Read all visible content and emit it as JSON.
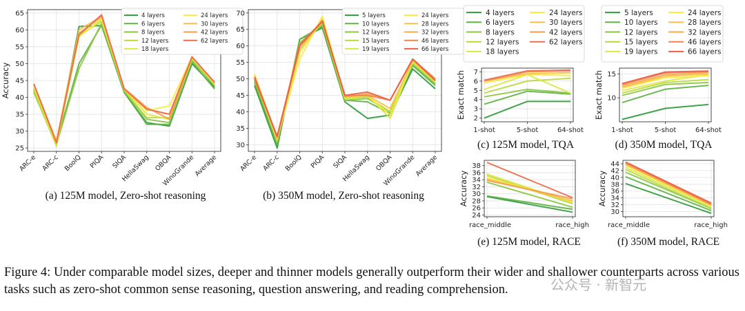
{
  "colors": {
    "g4": "#2e9a3a",
    "g6": "#5db344",
    "g8": "#8cc63f",
    "g12": "#b8d93c",
    "g18": "#dbe844",
    "g24": "#f7ea3f",
    "g30": "#f5c04c",
    "g42": "#f39a4c",
    "g62": "#ec6d4d",
    "s5": "#2e9a3a",
    "s10": "#5db344",
    "s12": "#8cc63f",
    "s15": "#b8d93c",
    "s19": "#dbe844",
    "s24": "#f7ea3f",
    "s28": "#f5c04c",
    "s32": "#f3aa4a",
    "s46": "#f0824a",
    "s66": "#ec5d45"
  },
  "figure_caption": "Figure 4: Under comparable model sizes, deeper and thinner models generally outperform their wider and shallower counterparts across various tasks such as zero-shot common sense reasoning, question answering, and reading comprehension.",
  "watermark": "公众号 · 新智元",
  "chart_data": [
    {
      "id": "a",
      "type": "line",
      "caption": "(a) 125M model, Zero-shot reasoning",
      "ylabel": "Accuracy",
      "ylim": [
        24,
        66
      ],
      "yticks": [
        25,
        30,
        35,
        40,
        45,
        50,
        55,
        60,
        65
      ],
      "grid": true,
      "legend_placement": "top-right",
      "categories": [
        "ARC-e",
        "ARC-c",
        "BoolQ",
        "PIQA",
        "SIQA",
        "HellaSwag",
        "OBQA",
        "WinoGrande",
        "Average"
      ],
      "series": [
        {
          "name": "4 layers",
          "color": "g4",
          "values": [
            42,
            26,
            61,
            61.3,
            41.5,
            32.5,
            31.5,
            50,
            43
          ]
        },
        {
          "name": "6 layers",
          "color": "g6",
          "values": [
            42.5,
            26.5,
            50,
            61.5,
            41.5,
            32,
            32,
            50.5,
            42.5
          ]
        },
        {
          "name": "8 layers",
          "color": "g8",
          "values": [
            41.5,
            26,
            48.5,
            62,
            42,
            33.5,
            32.5,
            51,
            43.5
          ]
        },
        {
          "name": "12 layers",
          "color": "g12",
          "values": [
            42,
            25.5,
            58.5,
            62.5,
            42,
            34,
            34,
            51.5,
            44
          ]
        },
        {
          "name": "18 layers",
          "color": "g18",
          "values": [
            43,
            25.7,
            58,
            63,
            42.5,
            35,
            33.5,
            51.5,
            44
          ]
        },
        {
          "name": "24 layers",
          "color": "g24",
          "values": [
            43.5,
            26.5,
            58,
            63.5,
            42.5,
            36,
            37.5,
            52,
            44
          ]
        },
        {
          "name": "30 layers",
          "color": "g30",
          "values": [
            44,
            27,
            60,
            64,
            42.5,
            36.5,
            35,
            52,
            44.5
          ]
        },
        {
          "name": "42 layers",
          "color": "g42",
          "values": [
            44,
            26.8,
            59,
            64,
            42.7,
            37,
            33.5,
            52,
            44.3
          ]
        },
        {
          "name": "62 layers",
          "color": "g62",
          "values": [
            44,
            26.5,
            58.5,
            64.5,
            42.5,
            36.5,
            35,
            52,
            44.5
          ]
        }
      ]
    },
    {
      "id": "b",
      "type": "line",
      "caption": "(b) 350M model, Zero-shot reasoning",
      "ylabel": "",
      "ylim": [
        28,
        71
      ],
      "yticks": [
        30,
        35,
        40,
        45,
        50,
        55,
        60,
        65,
        70
      ],
      "grid": true,
      "legend_placement": "top-right",
      "categories": [
        "ARC-e",
        "ARC-c",
        "BoolQ",
        "PIQA",
        "SIQA",
        "HellaSwag",
        "OBQA",
        "WinoGrande",
        "Average"
      ],
      "series": [
        {
          "name": "5 layers",
          "color": "s5",
          "values": [
            48,
            29,
            62,
            65.5,
            43,
            38,
            39,
            53,
            47
          ]
        },
        {
          "name": "10 layers",
          "color": "s10",
          "values": [
            49,
            30,
            62,
            66,
            43.5,
            43,
            39.5,
            54,
            48
          ]
        },
        {
          "name": "12 layers",
          "color": "s12",
          "values": [
            49.5,
            31,
            61,
            66.5,
            43.5,
            44,
            40,
            54.5,
            48.5
          ]
        },
        {
          "name": "15 layers",
          "color": "s15",
          "values": [
            50,
            31,
            59,
            67,
            44,
            44.5,
            40,
            55,
            49
          ]
        },
        {
          "name": "19 layers",
          "color": "s19",
          "values": [
            50.5,
            31.5,
            58,
            68,
            44,
            45,
            38,
            55,
            49
          ]
        },
        {
          "name": "24 layers",
          "color": "s24",
          "values": [
            51.5,
            32,
            56,
            69,
            44.5,
            45,
            39,
            55.5,
            49.5
          ]
        },
        {
          "name": "28 layers",
          "color": "s28",
          "values": [
            51,
            32,
            59,
            68,
            44.5,
            45,
            41,
            55.5,
            49.5
          ]
        },
        {
          "name": "32 layers",
          "color": "s32",
          "values": [
            50.5,
            32,
            60,
            67.5,
            44.5,
            45.5,
            43.5,
            56,
            49.5
          ]
        },
        {
          "name": "46 layers",
          "color": "s46",
          "values": [
            50,
            32.5,
            60.5,
            67.5,
            45,
            45,
            43.5,
            56,
            50
          ]
        },
        {
          "name": "66 layers",
          "color": "s66",
          "values": [
            50.5,
            32.5,
            60,
            67.5,
            45,
            46,
            43.5,
            56,
            49.5
          ]
        }
      ]
    },
    {
      "id": "c",
      "type": "line",
      "caption": "(c) 125M model, TQA",
      "ylabel": "Exact match",
      "ylim": [
        1.6,
        7.4
      ],
      "yticks": [
        2,
        3,
        4,
        5,
        6,
        7
      ],
      "grid": true,
      "legend_placement": "top",
      "categories": [
        "1-shot",
        "5-shot",
        "64-shot"
      ],
      "series": [
        {
          "name": "4 layers",
          "color": "g4",
          "values": [
            2,
            3.8,
            3.8
          ]
        },
        {
          "name": "6 layers",
          "color": "g6",
          "values": [
            3.5,
            4.9,
            4.6
          ]
        },
        {
          "name": "8 layers",
          "color": "g8",
          "values": [
            4.3,
            5.1,
            4.7
          ]
        },
        {
          "name": "12 layers",
          "color": "g12",
          "values": [
            4.7,
            6.0,
            6.3
          ]
        },
        {
          "name": "18 layers",
          "color": "g18",
          "values": [
            5.1,
            6.7,
            4.7
          ]
        },
        {
          "name": "24 layers",
          "color": "g24",
          "values": [
            5.8,
            6.7,
            6.6
          ]
        },
        {
          "name": "30 layers",
          "color": "g30",
          "values": [
            6.0,
            6.8,
            6.9
          ]
        },
        {
          "name": "42 layers",
          "color": "g42",
          "values": [
            6.0,
            7.0,
            7.1
          ]
        },
        {
          "name": "62 layers",
          "color": "g62",
          "values": [
            6.1,
            7.1,
            7.2
          ]
        }
      ]
    },
    {
      "id": "d",
      "type": "line",
      "caption": "(d) 350M model, TQA",
      "ylabel": "Exact match",
      "ylim": [
        5,
        16.2
      ],
      "yticks": [
        10,
        15
      ],
      "grid": true,
      "legend_placement": "top",
      "categories": [
        "1-shot",
        "5-shot",
        "64-shot"
      ],
      "series": [
        {
          "name": "5 layers",
          "color": "s5",
          "values": [
            5.5,
            7.8,
            8.6
          ]
        },
        {
          "name": "10 layers",
          "color": "s10",
          "values": [
            9,
            11.8,
            12.6
          ]
        },
        {
          "name": "12 layers",
          "color": "s12",
          "values": [
            10.5,
            12.8,
            13.2
          ]
        },
        {
          "name": "15 layers",
          "color": "s15",
          "values": [
            11,
            13.2,
            13.8
          ]
        },
        {
          "name": "19 layers",
          "color": "s19",
          "values": [
            11.5,
            13.5,
            14.8
          ]
        },
        {
          "name": "24 layers",
          "color": "s24",
          "values": [
            12,
            14.2,
            14.6
          ]
        },
        {
          "name": "28 layers",
          "color": "s28",
          "values": [
            12.2,
            14.5,
            15.0
          ]
        },
        {
          "name": "32 layers",
          "color": "s32",
          "values": [
            12.5,
            14.8,
            15.3
          ]
        },
        {
          "name": "46 layers",
          "color": "s46",
          "values": [
            12.8,
            15.2,
            15.5
          ]
        },
        {
          "name": "66 layers",
          "color": "s66",
          "values": [
            13.0,
            15.4,
            15.6
          ]
        }
      ]
    },
    {
      "id": "e",
      "type": "line",
      "caption": "(e) 125M model, RACE",
      "ylabel": "Accuracy",
      "ylim": [
        23.5,
        39.5
      ],
      "yticks": [
        24,
        26,
        28,
        30,
        32,
        34,
        36,
        38
      ],
      "grid": true,
      "legend_placement": "none",
      "categories": [
        "race_middle",
        "race_high"
      ],
      "series": [
        {
          "name": "4 layers",
          "color": "g4",
          "values": [
            29.2,
            24.8
          ]
        },
        {
          "name": "6 layers",
          "color": "g6",
          "values": [
            29.4,
            25.6
          ]
        },
        {
          "name": "8 layers",
          "color": "g8",
          "values": [
            33.3,
            26.2
          ]
        },
        {
          "name": "12 layers",
          "color": "g12",
          "values": [
            35.2,
            27.2
          ]
        },
        {
          "name": "18 layers",
          "color": "g18",
          "values": [
            35.6,
            27.6
          ]
        },
        {
          "name": "24 layers",
          "color": "g24",
          "values": [
            34.6,
            27.8
          ]
        },
        {
          "name": "30 layers",
          "color": "g30",
          "values": [
            34.2,
            28.0
          ]
        },
        {
          "name": "42 layers",
          "color": "g42",
          "values": [
            33.8,
            28.6
          ]
        },
        {
          "name": "62 layers",
          "color": "g62",
          "values": [
            38.9,
            28.9
          ]
        }
      ]
    },
    {
      "id": "f",
      "type": "line",
      "caption": "(f) 350M model, RACE",
      "ylabel": "Accuracy",
      "ylim": [
        28.5,
        45
      ],
      "yticks": [
        30,
        32,
        34,
        36,
        38,
        40,
        42,
        44
      ],
      "grid": true,
      "legend_placement": "none",
      "categories": [
        "race_middle",
        "race_high"
      ],
      "series": [
        {
          "name": "5 layers",
          "color": "s5",
          "values": [
            38.2,
            29.5
          ]
        },
        {
          "name": "10 layers",
          "color": "s10",
          "values": [
            40.2,
            30.3
          ]
        },
        {
          "name": "12 layers",
          "color": "s12",
          "values": [
            41.5,
            30.9
          ]
        },
        {
          "name": "15 layers",
          "color": "s15",
          "values": [
            42.3,
            31.0
          ]
        },
        {
          "name": "19 layers",
          "color": "s19",
          "values": [
            42.9,
            31.5
          ]
        },
        {
          "name": "24 layers",
          "color": "s24",
          "values": [
            43.5,
            31.8
          ]
        },
        {
          "name": "28 layers",
          "color": "s28",
          "values": [
            43.8,
            31.9
          ]
        },
        {
          "name": "32 layers",
          "color": "s32",
          "values": [
            44.0,
            32.0
          ]
        },
        {
          "name": "46 layers",
          "color": "s46",
          "values": [
            44.3,
            32.2
          ]
        },
        {
          "name": "66 layers",
          "color": "s66",
          "values": [
            44.5,
            32.5
          ]
        }
      ]
    }
  ]
}
